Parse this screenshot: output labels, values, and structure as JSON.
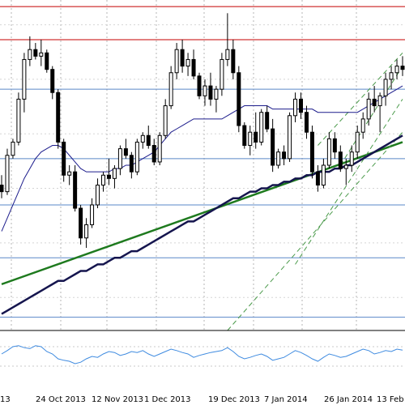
{
  "chart_data": {
    "type": "candlestick",
    "x_labels": [
      "24 Oct 2013",
      "12 Nov 2013",
      "1 Dec 2013",
      "19 Dec 2013",
      "7 Jan 2014",
      "26 Jan 2014",
      "13 Feb"
    ],
    "x_label_leading_partial": "13",
    "price_range": {
      "min": 0,
      "max": 100
    },
    "candles": [
      {
        "o": 44,
        "h": 47,
        "l": 40,
        "c": 42
      },
      {
        "o": 42,
        "h": 55,
        "l": 41,
        "c": 53
      },
      {
        "o": 53,
        "h": 58,
        "l": 52,
        "c": 57
      },
      {
        "o": 57,
        "h": 72,
        "l": 56,
        "c": 70
      },
      {
        "o": 70,
        "h": 84,
        "l": 66,
        "c": 82
      },
      {
        "o": 82,
        "h": 89,
        "l": 80,
        "c": 85
      },
      {
        "o": 85,
        "h": 87,
        "l": 82,
        "c": 83
      },
      {
        "o": 83,
        "h": 88,
        "l": 80,
        "c": 84
      },
      {
        "o": 84,
        "h": 85,
        "l": 78,
        "c": 79
      },
      {
        "o": 79,
        "h": 80,
        "l": 70,
        "c": 72
      },
      {
        "o": 72,
        "h": 73,
        "l": 55,
        "c": 57
      },
      {
        "o": 57,
        "h": 58,
        "l": 45,
        "c": 47
      },
      {
        "o": 47,
        "h": 50,
        "l": 44,
        "c": 48
      },
      {
        "o": 48,
        "h": 50,
        "l": 36,
        "c": 37
      },
      {
        "o": 37,
        "h": 38,
        "l": 26,
        "c": 28
      },
      {
        "o": 28,
        "h": 34,
        "l": 25,
        "c": 32
      },
      {
        "o": 32,
        "h": 40,
        "l": 31,
        "c": 38
      },
      {
        "o": 38,
        "h": 46,
        "l": 37,
        "c": 44
      },
      {
        "o": 44,
        "h": 48,
        "l": 42,
        "c": 47
      },
      {
        "o": 47,
        "h": 52,
        "l": 44,
        "c": 46
      },
      {
        "o": 46,
        "h": 50,
        "l": 43,
        "c": 49
      },
      {
        "o": 49,
        "h": 56,
        "l": 47,
        "c": 55
      },
      {
        "o": 55,
        "h": 58,
        "l": 52,
        "c": 53
      },
      {
        "o": 53,
        "h": 54,
        "l": 46,
        "c": 48
      },
      {
        "o": 48,
        "h": 58,
        "l": 47,
        "c": 57
      },
      {
        "o": 57,
        "h": 60,
        "l": 55,
        "c": 59
      },
      {
        "o": 59,
        "h": 62,
        "l": 55,
        "c": 56
      },
      {
        "o": 56,
        "h": 58,
        "l": 50,
        "c": 51
      },
      {
        "o": 51,
        "h": 60,
        "l": 50,
        "c": 59
      },
      {
        "o": 59,
        "h": 70,
        "l": 58,
        "c": 68
      },
      {
        "o": 68,
        "h": 80,
        "l": 67,
        "c": 78
      },
      {
        "o": 78,
        "h": 87,
        "l": 76,
        "c": 85
      },
      {
        "o": 85,
        "h": 88,
        "l": 78,
        "c": 80
      },
      {
        "o": 80,
        "h": 84,
        "l": 77,
        "c": 82
      },
      {
        "o": 82,
        "h": 85,
        "l": 76,
        "c": 77
      },
      {
        "o": 77,
        "h": 78,
        "l": 70,
        "c": 71
      },
      {
        "o": 71,
        "h": 76,
        "l": 68,
        "c": 74
      },
      {
        "o": 74,
        "h": 78,
        "l": 68,
        "c": 70
      },
      {
        "o": 70,
        "h": 74,
        "l": 66,
        "c": 73
      },
      {
        "o": 73,
        "h": 84,
        "l": 71,
        "c": 82
      },
      {
        "o": 82,
        "h": 96,
        "l": 80,
        "c": 85
      },
      {
        "o": 85,
        "h": 88,
        "l": 76,
        "c": 78
      },
      {
        "o": 78,
        "h": 80,
        "l": 60,
        "c": 62
      },
      {
        "o": 62,
        "h": 63,
        "l": 55,
        "c": 56
      },
      {
        "o": 56,
        "h": 62,
        "l": 53,
        "c": 60
      },
      {
        "o": 60,
        "h": 66,
        "l": 55,
        "c": 57
      },
      {
        "o": 57,
        "h": 67,
        "l": 56,
        "c": 66
      },
      {
        "o": 66,
        "h": 68,
        "l": 60,
        "c": 61
      },
      {
        "o": 61,
        "h": 64,
        "l": 48,
        "c": 50
      },
      {
        "o": 50,
        "h": 55,
        "l": 49,
        "c": 54
      },
      {
        "o": 54,
        "h": 56,
        "l": 50,
        "c": 52
      },
      {
        "o": 52,
        "h": 66,
        "l": 51,
        "c": 65
      },
      {
        "o": 65,
        "h": 72,
        "l": 63,
        "c": 70
      },
      {
        "o": 70,
        "h": 72,
        "l": 64,
        "c": 66
      },
      {
        "o": 66,
        "h": 68,
        "l": 58,
        "c": 60
      },
      {
        "o": 60,
        "h": 62,
        "l": 46,
        "c": 48
      },
      {
        "o": 48,
        "h": 50,
        "l": 42,
        "c": 44
      },
      {
        "o": 44,
        "h": 52,
        "l": 43,
        "c": 50
      },
      {
        "o": 50,
        "h": 60,
        "l": 49,
        "c": 58
      },
      {
        "o": 58,
        "h": 60,
        "l": 52,
        "c": 54
      },
      {
        "o": 54,
        "h": 56,
        "l": 48,
        "c": 49
      },
      {
        "o": 49,
        "h": 52,
        "l": 44,
        "c": 50
      },
      {
        "o": 50,
        "h": 56,
        "l": 48,
        "c": 54
      },
      {
        "o": 54,
        "h": 62,
        "l": 52,
        "c": 60
      },
      {
        "o": 60,
        "h": 66,
        "l": 58,
        "c": 64
      },
      {
        "o": 64,
        "h": 72,
        "l": 62,
        "c": 70
      },
      {
        "o": 70,
        "h": 74,
        "l": 66,
        "c": 68
      },
      {
        "o": 68,
        "h": 72,
        "l": 60,
        "c": 71
      },
      {
        "o": 71,
        "h": 78,
        "l": 68,
        "c": 76
      },
      {
        "o": 76,
        "h": 80,
        "l": 73,
        "c": 78
      },
      {
        "o": 78,
        "h": 82,
        "l": 76,
        "c": 80
      },
      {
        "o": 80,
        "h": 83,
        "l": 77,
        "c": 79
      }
    ],
    "moving_averages": [
      {
        "color": "#1c1c8c",
        "width": 1,
        "values": [
          30,
          34,
          38,
          42,
          46,
          49,
          52,
          54,
          55,
          56,
          56,
          55,
          53,
          51,
          49,
          48,
          48,
          48,
          48,
          48,
          49,
          49,
          50,
          50,
          51,
          52,
          53,
          54,
          56,
          58,
          60,
          61,
          62,
          63,
          64,
          64,
          64,
          64,
          64,
          64,
          65,
          66,
          67,
          68,
          68,
          68,
          68,
          68,
          67,
          67,
          67,
          67,
          67,
          67,
          67,
          67,
          66,
          66,
          66,
          66,
          66,
          66,
          66,
          66,
          67,
          68,
          69,
          70,
          71,
          72,
          73,
          74
        ]
      },
      {
        "color": "#15154e",
        "width": 2.5,
        "values": [
          5,
          6,
          7,
          8,
          9,
          10,
          11,
          12,
          13,
          14,
          15,
          15,
          16,
          17,
          18,
          18,
          19,
          20,
          20,
          21,
          22,
          22,
          23,
          24,
          24,
          25,
          26,
          27,
          28,
          29,
          30,
          31,
          32,
          33,
          33,
          34,
          35,
          36,
          37,
          38,
          39,
          40,
          40,
          41,
          42,
          42,
          43,
          43,
          44,
          44,
          45,
          45,
          46,
          46,
          47,
          47,
          48,
          48,
          48,
          49,
          49,
          50,
          50,
          51,
          52,
          53,
          54,
          55,
          56,
          57,
          58,
          59
        ]
      }
    ],
    "horizontal_levels": [
      {
        "value": 98,
        "color": "#c40000"
      },
      {
        "value": 88,
        "color": "#c40000"
      },
      {
        "value": 73,
        "color": "#5a87c8"
      },
      {
        "value": 52,
        "color": "#5a87c8"
      },
      {
        "value": 38,
        "color": "#5a87c8"
      },
      {
        "value": 22,
        "color": "#5a87c8"
      },
      {
        "value": 4,
        "color": "#5a87c8"
      }
    ],
    "trendlines": [
      {
        "from": [
          0,
          14
        ],
        "to": [
          71,
          57
        ],
        "color": "#1e7a1e",
        "style": "solid"
      },
      {
        "from": [
          40,
          0
        ],
        "to": [
          71,
          60
        ],
        "color": "#4a9a4a",
        "style": "dashed"
      },
      {
        "from": [
          52,
          20
        ],
        "to": [
          71,
          70
        ],
        "color": "#4a9a4a",
        "style": "dashed"
      },
      {
        "from": [
          60,
          50
        ],
        "to": [
          71,
          80
        ],
        "color": "#4a9a4a",
        "style": "dashed"
      },
      {
        "from": [
          56,
          56
        ],
        "to": [
          71,
          84
        ],
        "color": "#4a9a4a",
        "style": "dashed"
      }
    ],
    "oscillator": {
      "color": "#3f8be0",
      "range": [
        0,
        100
      ],
      "values": [
        55,
        62,
        70,
        72,
        68,
        66,
        72,
        70,
        60,
        55,
        45,
        42,
        40,
        35,
        38,
        45,
        50,
        48,
        55,
        60,
        58,
        52,
        55,
        60,
        58,
        62,
        55,
        50,
        55,
        60,
        65,
        62,
        58,
        55,
        48,
        52,
        55,
        58,
        60,
        62,
        68,
        60,
        50,
        45,
        48,
        52,
        55,
        50,
        42,
        45,
        48,
        55,
        62,
        58,
        52,
        45,
        40,
        48,
        55,
        52,
        48,
        50,
        55,
        60,
        65,
        62,
        55,
        58,
        62,
        60,
        65,
        63
      ]
    },
    "grid": true
  }
}
